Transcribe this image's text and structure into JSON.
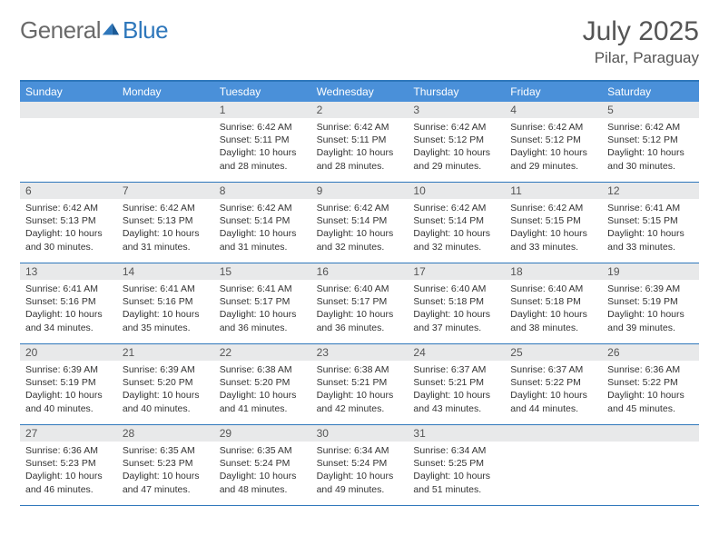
{
  "logo": {
    "word1": "General",
    "word2": "Blue"
  },
  "title": "July 2025",
  "location": "Pilar, Paraguay",
  "colors": {
    "header_bar": "#4a90d9",
    "border": "#2e77bb",
    "daynum_bg": "#e8e9ea",
    "text": "#333333",
    "muted": "#555555",
    "logo_gray": "#6a6a6a",
    "logo_blue": "#2e77bb",
    "background": "#ffffff"
  },
  "typography": {
    "title_fontsize": 30,
    "location_fontsize": 17,
    "dayheader_fontsize": 12,
    "daynum_fontsize": 12,
    "body_fontsize": 10.5,
    "font_family": "Arial"
  },
  "layout": {
    "columns": 7,
    "rows": 5,
    "cell_min_height": 88
  },
  "day_names": [
    "Sunday",
    "Monday",
    "Tuesday",
    "Wednesday",
    "Thursday",
    "Friday",
    "Saturday"
  ],
  "weeks": [
    [
      {
        "n": "",
        "empty": true
      },
      {
        "n": "",
        "empty": true
      },
      {
        "n": "1",
        "sunrise": "6:42 AM",
        "sunset": "5:11 PM",
        "dl": "10 hours and 28 minutes."
      },
      {
        "n": "2",
        "sunrise": "6:42 AM",
        "sunset": "5:11 PM",
        "dl": "10 hours and 28 minutes."
      },
      {
        "n": "3",
        "sunrise": "6:42 AM",
        "sunset": "5:12 PM",
        "dl": "10 hours and 29 minutes."
      },
      {
        "n": "4",
        "sunrise": "6:42 AM",
        "sunset": "5:12 PM",
        "dl": "10 hours and 29 minutes."
      },
      {
        "n": "5",
        "sunrise": "6:42 AM",
        "sunset": "5:12 PM",
        "dl": "10 hours and 30 minutes."
      }
    ],
    [
      {
        "n": "6",
        "sunrise": "6:42 AM",
        "sunset": "5:13 PM",
        "dl": "10 hours and 30 minutes."
      },
      {
        "n": "7",
        "sunrise": "6:42 AM",
        "sunset": "5:13 PM",
        "dl": "10 hours and 31 minutes."
      },
      {
        "n": "8",
        "sunrise": "6:42 AM",
        "sunset": "5:14 PM",
        "dl": "10 hours and 31 minutes."
      },
      {
        "n": "9",
        "sunrise": "6:42 AM",
        "sunset": "5:14 PM",
        "dl": "10 hours and 32 minutes."
      },
      {
        "n": "10",
        "sunrise": "6:42 AM",
        "sunset": "5:14 PM",
        "dl": "10 hours and 32 minutes."
      },
      {
        "n": "11",
        "sunrise": "6:42 AM",
        "sunset": "5:15 PM",
        "dl": "10 hours and 33 minutes."
      },
      {
        "n": "12",
        "sunrise": "6:41 AM",
        "sunset": "5:15 PM",
        "dl": "10 hours and 33 minutes."
      }
    ],
    [
      {
        "n": "13",
        "sunrise": "6:41 AM",
        "sunset": "5:16 PM",
        "dl": "10 hours and 34 minutes."
      },
      {
        "n": "14",
        "sunrise": "6:41 AM",
        "sunset": "5:16 PM",
        "dl": "10 hours and 35 minutes."
      },
      {
        "n": "15",
        "sunrise": "6:41 AM",
        "sunset": "5:17 PM",
        "dl": "10 hours and 36 minutes."
      },
      {
        "n": "16",
        "sunrise": "6:40 AM",
        "sunset": "5:17 PM",
        "dl": "10 hours and 36 minutes."
      },
      {
        "n": "17",
        "sunrise": "6:40 AM",
        "sunset": "5:18 PM",
        "dl": "10 hours and 37 minutes."
      },
      {
        "n": "18",
        "sunrise": "6:40 AM",
        "sunset": "5:18 PM",
        "dl": "10 hours and 38 minutes."
      },
      {
        "n": "19",
        "sunrise": "6:39 AM",
        "sunset": "5:19 PM",
        "dl": "10 hours and 39 minutes."
      }
    ],
    [
      {
        "n": "20",
        "sunrise": "6:39 AM",
        "sunset": "5:19 PM",
        "dl": "10 hours and 40 minutes."
      },
      {
        "n": "21",
        "sunrise": "6:39 AM",
        "sunset": "5:20 PM",
        "dl": "10 hours and 40 minutes."
      },
      {
        "n": "22",
        "sunrise": "6:38 AM",
        "sunset": "5:20 PM",
        "dl": "10 hours and 41 minutes."
      },
      {
        "n": "23",
        "sunrise": "6:38 AM",
        "sunset": "5:21 PM",
        "dl": "10 hours and 42 minutes."
      },
      {
        "n": "24",
        "sunrise": "6:37 AM",
        "sunset": "5:21 PM",
        "dl": "10 hours and 43 minutes."
      },
      {
        "n": "25",
        "sunrise": "6:37 AM",
        "sunset": "5:22 PM",
        "dl": "10 hours and 44 minutes."
      },
      {
        "n": "26",
        "sunrise": "6:36 AM",
        "sunset": "5:22 PM",
        "dl": "10 hours and 45 minutes."
      }
    ],
    [
      {
        "n": "27",
        "sunrise": "6:36 AM",
        "sunset": "5:23 PM",
        "dl": "10 hours and 46 minutes."
      },
      {
        "n": "28",
        "sunrise": "6:35 AM",
        "sunset": "5:23 PM",
        "dl": "10 hours and 47 minutes."
      },
      {
        "n": "29",
        "sunrise": "6:35 AM",
        "sunset": "5:24 PM",
        "dl": "10 hours and 48 minutes."
      },
      {
        "n": "30",
        "sunrise": "6:34 AM",
        "sunset": "5:24 PM",
        "dl": "10 hours and 49 minutes."
      },
      {
        "n": "31",
        "sunrise": "6:34 AM",
        "sunset": "5:25 PM",
        "dl": "10 hours and 51 minutes."
      },
      {
        "n": "",
        "empty": true
      },
      {
        "n": "",
        "empty": true
      }
    ]
  ],
  "labels": {
    "sunrise": "Sunrise:",
    "sunset": "Sunset:",
    "daylight": "Daylight:"
  }
}
